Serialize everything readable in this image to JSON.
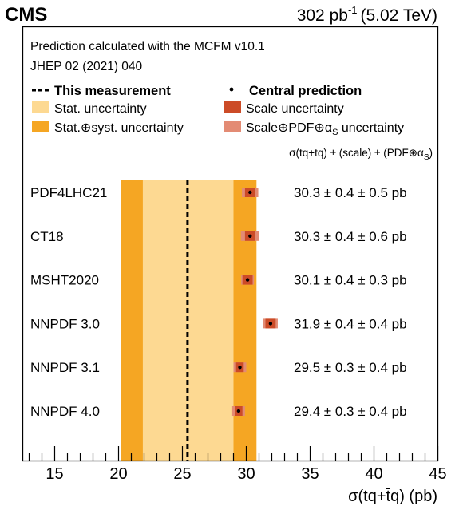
{
  "header": {
    "experiment": "CMS",
    "lumi_value": "302 pb",
    "lumi_exp": "-1",
    "energy": "(5.02 TeV)"
  },
  "notes": {
    "line1": "Prediction calculated with the MCFM v10.1",
    "line2": "JHEP 02 (2021) 040"
  },
  "legend": {
    "measurement": "This measurement",
    "central": "Central prediction",
    "stat": "Stat. uncertainty",
    "scale": "Scale uncertainty",
    "statsyst": "Stat.⊕syst. uncertainty",
    "scalepdf": "Scale⊕PDF⊕α",
    "scalepdf_sub": "S",
    "scalepdf_tail": " uncertainty"
  },
  "column_header": {
    "text": "σ(tq+t̄q) ± (scale) ± (PDF⊕α",
    "sub": "S",
    "close": ")"
  },
  "colors": {
    "stat_band": "#fdd992",
    "statsyst_band": "#f5a623",
    "scale_box": "#cc4b27",
    "scalepdf_box": "#e38b74",
    "measurement_line": "#000000",
    "central_marker": "#000000"
  },
  "chart_data": {
    "type": "scatter",
    "xlabel": "σ(tq+t̄q) (pb)",
    "xlim": [
      12.5,
      45
    ],
    "xticks": [
      15,
      20,
      25,
      30,
      35,
      40,
      45
    ],
    "measurement": {
      "value": 25.4,
      "stat_band": [
        21.9,
        29.0
      ],
      "statsyst_band": [
        20.2,
        30.8
      ]
    },
    "predictions": [
      {
        "pdf": "PDF4LHC21",
        "central": 30.3,
        "scale": 0.4,
        "pdf_unc": 0.5,
        "label": "30.3 ± 0.4 ± 0.5 pb"
      },
      {
        "pdf": "CT18",
        "central": 30.3,
        "scale": 0.4,
        "pdf_unc": 0.6,
        "label": "30.3 ± 0.4 ± 0.6 pb"
      },
      {
        "pdf": "MSHT2020",
        "central": 30.1,
        "scale": 0.4,
        "pdf_unc": 0.3,
        "label": "30.1 ± 0.4 ± 0.3 pb"
      },
      {
        "pdf": "NNPDF 3.0",
        "central": 31.9,
        "scale": 0.4,
        "pdf_unc": 0.4,
        "label": "31.9 ± 0.4 ± 0.4 pb"
      },
      {
        "pdf": "NNPDF 3.1",
        "central": 29.5,
        "scale": 0.3,
        "pdf_unc": 0.4,
        "label": "29.5 ± 0.3 ± 0.4 pb"
      },
      {
        "pdf": "NNPDF 4.0",
        "central": 29.4,
        "scale": 0.3,
        "pdf_unc": 0.4,
        "label": "29.4 ± 0.3 ± 0.4 pb"
      }
    ]
  }
}
